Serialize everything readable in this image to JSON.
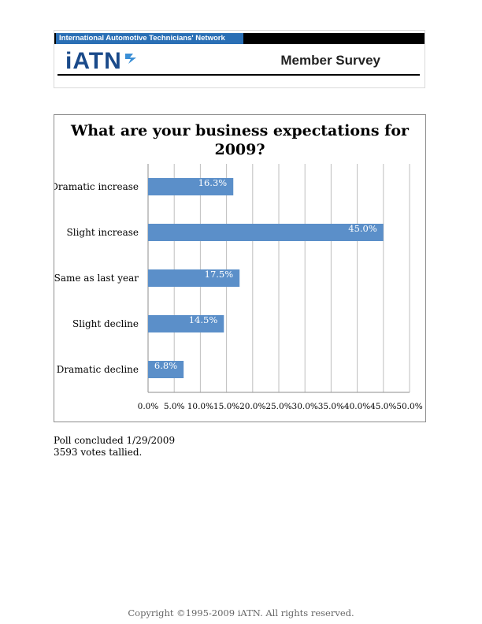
{
  "header": {
    "org_name": "International Automotive Technicians' Network",
    "logo_text": "iATN",
    "title": "Member Survey"
  },
  "chart_data": {
    "type": "bar",
    "orientation": "horizontal",
    "title_lines": [
      "What are your business expectations for",
      "2009?"
    ],
    "categories": [
      "Dramatic increase",
      "Slight increase",
      "Same as last year",
      "Slight decline",
      "Dramatic decline"
    ],
    "values": [
      16.3,
      45.0,
      17.5,
      14.5,
      6.8
    ],
    "data_labels": [
      "16.3%",
      "45.0%",
      "17.5%",
      "14.5%",
      "6.8%"
    ],
    "x_ticks": [
      "0.0%",
      "5.0%",
      "10.0%",
      "15.0%",
      "20.0%",
      "25.0%",
      "30.0%",
      "35.0%",
      "40.0%",
      "45.0%",
      "50.0%"
    ],
    "xlim": [
      0,
      50
    ],
    "grid": true,
    "bar_color": "#5b8fc9"
  },
  "notes": {
    "line1": "Poll concluded 1/29/2009",
    "line2": "3593 votes tallied."
  },
  "footer": {
    "copyright": "Copyright ©1995-2009 iATN. All rights reserved."
  }
}
